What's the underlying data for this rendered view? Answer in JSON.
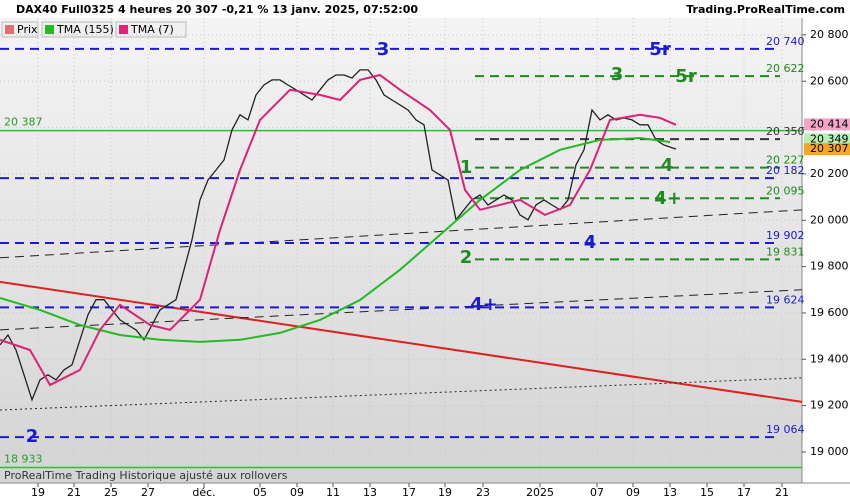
{
  "chart_data": {
    "type": "line",
    "title": "DAX40 Full0325 4 heures 20 307 -0,21 % 13 janv. 2025, 07:52:00",
    "source": "Trading.ProRealTime.com",
    "footer": "ProRealTime Trading  Historique ajusté aux rollovers",
    "ylim": [
      18866,
      20873
    ],
    "xlim": [
      0,
      200.5
    ],
    "yticks": [
      {
        "value": 20800,
        "label": "20 800"
      },
      {
        "value": 20600,
        "label": "20 600"
      },
      {
        "value": 20400,
        "label": "20 400"
      },
      {
        "value": 20200,
        "label": "20 200"
      },
      {
        "value": 20000,
        "label": "20 000"
      },
      {
        "value": 19800,
        "label": "19 800"
      },
      {
        "value": 19600,
        "label": "19 600"
      },
      {
        "value": 19400,
        "label": "19 400"
      },
      {
        "value": 19200,
        "label": "19 200"
      },
      {
        "value": 19000,
        "label": "19 000"
      }
    ],
    "xticks": [
      {
        "value": 9.5,
        "label": "19"
      },
      {
        "value": 18.5,
        "label": "21"
      },
      {
        "value": 27.75,
        "label": "25"
      },
      {
        "value": 37,
        "label": "27"
      },
      {
        "value": 51,
        "label": "déc."
      },
      {
        "value": 65,
        "label": "05"
      },
      {
        "value": 74.25,
        "label": "09"
      },
      {
        "value": 83.25,
        "label": "11"
      },
      {
        "value": 92.5,
        "label": "13"
      },
      {
        "value": 102.25,
        "label": "17"
      },
      {
        "value": 111.25,
        "label": "19"
      },
      {
        "value": 120.75,
        "label": "23"
      },
      {
        "value": 135,
        "label": "2025"
      },
      {
        "value": 149.25,
        "label": "07"
      },
      {
        "value": 158.25,
        "label": "09"
      },
      {
        "value": 167.5,
        "label": "13"
      },
      {
        "value": 176.75,
        "label": "15"
      },
      {
        "value": 186,
        "label": "17"
      },
      {
        "value": 195.5,
        "label": "21"
      }
    ],
    "series": [
      {
        "name": "Prix",
        "color": "#222222",
        "x": [
          0,
          2,
          4,
          6,
          8,
          10,
          12,
          14,
          16,
          18,
          20,
          22,
          24,
          26,
          28,
          30,
          32,
          34,
          36,
          38,
          40,
          42,
          44,
          46,
          48,
          50,
          52,
          54,
          56,
          58,
          60,
          62,
          64,
          66,
          68,
          70,
          72,
          74,
          76,
          78,
          80,
          82,
          84,
          86,
          88,
          90,
          92,
          94,
          96,
          98,
          100,
          102,
          104,
          106,
          108,
          110,
          112,
          114,
          116,
          118,
          120,
          122,
          124,
          126,
          128,
          130,
          132,
          134,
          136,
          138,
          140,
          142,
          144,
          146,
          148,
          150,
          152,
          154,
          156,
          158,
          160,
          162,
          164,
          166,
          169
        ],
        "values": [
          19462,
          19505,
          19440,
          19333,
          19225,
          19311,
          19333,
          19311,
          19354,
          19376,
          19484,
          19592,
          19657,
          19657,
          19613,
          19570,
          19548,
          19527,
          19484,
          19548,
          19613,
          19635,
          19657,
          19786,
          19916,
          20088,
          20174,
          20217,
          20260,
          20390,
          20455,
          20433,
          20541,
          20584,
          20606,
          20606,
          20584,
          20563,
          20541,
          20519,
          20563,
          20606,
          20627,
          20627,
          20614,
          20649,
          20649,
          20606,
          20541,
          20519,
          20498,
          20476,
          20433,
          20412,
          20217,
          20196,
          20174,
          20002,
          20045,
          20088,
          20109,
          20066,
          20088,
          20109,
          20088,
          20023,
          20002,
          20066,
          20088,
          20066,
          20045,
          20088,
          20239,
          20304,
          20476,
          20433,
          20455,
          20433,
          20442,
          20433,
          20412,
          20412,
          20347,
          20325,
          20307
        ]
      },
      {
        "name": "TMA (155)",
        "color": "#22bb22",
        "x": [
          0,
          10,
          20,
          30,
          40,
          50,
          60,
          70,
          80,
          90,
          100,
          110,
          120,
          130,
          140,
          150,
          160,
          167.5
        ],
        "values": [
          19665,
          19613,
          19548,
          19505,
          19484,
          19475,
          19484,
          19514,
          19570,
          19656,
          19786,
          19937,
          20088,
          20217,
          20304,
          20347,
          20355,
          20338
        ]
      },
      {
        "name": "TMA (7)",
        "color": "#dd2277",
        "x": [
          0,
          7.5,
          12.5,
          20,
          25,
          30,
          37.5,
          42.5,
          50,
          55,
          60,
          65,
          72.5,
          80,
          85,
          90,
          95,
          100,
          107.5,
          112.5,
          116.25,
          120,
          130,
          136.25,
          142.5,
          147.5,
          152.5,
          160,
          165,
          169
        ],
        "values": [
          19484,
          19440,
          19289,
          19354,
          19527,
          19635,
          19548,
          19527,
          19657,
          19958,
          20217,
          20433,
          20563,
          20541,
          20519,
          20606,
          20627,
          20563,
          20476,
          20390,
          20131,
          20045,
          20088,
          20023,
          20066,
          20217,
          20433,
          20455,
          20442,
          20412
        ]
      }
    ],
    "levels": [
      {
        "value": 20740,
        "label": "20 740",
        "color": "#1a1ad6",
        "style": "dashed",
        "xstart": 0
      },
      {
        "value": 20622,
        "label": "20 622",
        "color": "#1f8a1f",
        "style": "dashed",
        "xstart": 118.75
      },
      {
        "value": 20350,
        "label": "20 350",
        "color": "#333333",
        "style": "dashed",
        "xstart": 118.75
      },
      {
        "value": 20227,
        "label": "20 227",
        "color": "#1f8a1f",
        "style": "dashed",
        "xstart": 118.75
      },
      {
        "value": 20182,
        "label": "20 182",
        "color": "#1a1ad6",
        "style": "dashed",
        "xstart": 0
      },
      {
        "value": 20095,
        "label": "20 095",
        "color": "#1f8a1f",
        "style": "dashed",
        "xstart": 118.75
      },
      {
        "value": 19902,
        "label": "19 902",
        "color": "#1a1ad6",
        "style": "dashed",
        "xstart": 0
      },
      {
        "value": 19831,
        "label": "19 831",
        "color": "#1f8a1f",
        "style": "dashed",
        "xstart": 118.75
      },
      {
        "value": 19624,
        "label": "19 624",
        "color": "#1a1ad6",
        "style": "dashed",
        "xstart": 0
      },
      {
        "value": 19064,
        "label": "19 064",
        "color": "#1a1ad6",
        "style": "dashed",
        "xstart": 0
      }
    ],
    "solid_levels": [
      {
        "value": 20387,
        "label": "20 387",
        "color": "#33bb33"
      },
      {
        "value": 18933,
        "label": "18 933",
        "color": "#33bb33"
      }
    ],
    "trendlines": [
      {
        "x": [
          0,
          200.5
        ],
        "values": [
          19734,
          19216
        ],
        "color": "#e02020",
        "style": "solid"
      },
      {
        "x": [
          0,
          200.5
        ],
        "values": [
          19838,
          20045
        ],
        "color": "#222222",
        "style": "dashed"
      },
      {
        "x": [
          0,
          200.5
        ],
        "values": [
          19527,
          19700
        ],
        "color": "#222222",
        "style": "dashed"
      },
      {
        "x": [
          0,
          200.5
        ],
        "values": [
          19181,
          19320
        ],
        "color": "#222222",
        "style": "dotted"
      }
    ],
    "price_boxes": [
      {
        "value": 20414,
        "label": "20 414",
        "color": "#f4a6c8"
      },
      {
        "value": 20349,
        "label": "20 349",
        "color": "#b8eeb8"
      },
      {
        "value": 20307,
        "label": "20 307",
        "color": "#f5a623"
      }
    ],
    "annotations": [
      {
        "text": "3",
        "color": "#1a1ad6"
      },
      {
        "text": "5r",
        "color": "#1a1ad6"
      },
      {
        "text": "3",
        "color": "#1f8a1f"
      },
      {
        "text": "5r",
        "color": "#1f8a1f"
      },
      {
        "text": "1",
        "color": "#1f8a1f"
      },
      {
        "text": "4",
        "color": "#1f8a1f"
      },
      {
        "text": "4+",
        "color": "#1f8a1f"
      },
      {
        "text": "2",
        "color": "#1f8a1f"
      },
      {
        "text": "4",
        "color": "#1a1ad6"
      },
      {
        "text": "4+",
        "color": "#1a1ad6"
      },
      {
        "text": "2",
        "color": "#1a1ad6"
      }
    ],
    "grid": true
  }
}
